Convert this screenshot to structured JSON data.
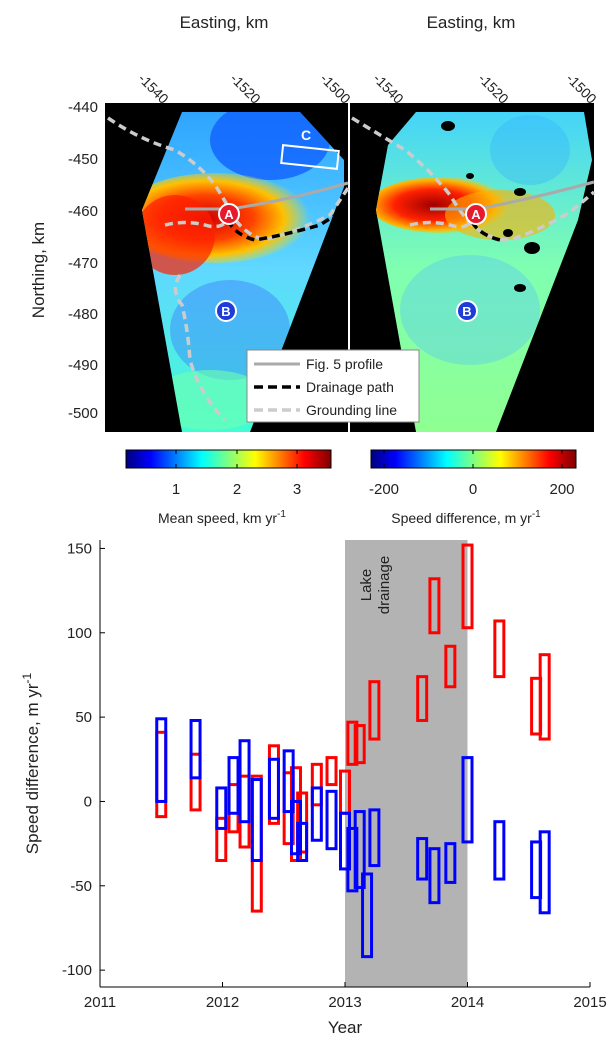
{
  "top_maps": {
    "easting_label": "Easting, km",
    "northing_label": "Northing, km",
    "easting_ticks": [
      "-1540",
      "-1520",
      "-1500"
    ],
    "northing_ticks": [
      "-440",
      "-450",
      "-460",
      "-470",
      "-480",
      "-490",
      "-500"
    ],
    "marker_a": "A",
    "marker_b": "B",
    "box_label": "C",
    "legend": [
      "Fig. 5 profile",
      "Drainage path",
      "Grounding line"
    ],
    "legend_colors": [
      "#aaaaaa",
      "#000000",
      "#cccccc"
    ],
    "colorbar_left": {
      "label": "Mean speed, km yr",
      "superscript": "-1",
      "ticks": [
        "1",
        "2",
        "3"
      ]
    },
    "colorbar_right": {
      "label": "Speed difference, m yr",
      "superscript": "-1",
      "ticks": [
        "-200",
        "0",
        "200"
      ]
    }
  },
  "chart_data": {
    "type": "bar",
    "xlabel": "Year",
    "ylabel": "Speed difference, m yr",
    "ylabel_superscript": "-1",
    "xlim": [
      2011,
      2015
    ],
    "ylim": [
      -110,
      155
    ],
    "xticks": [
      2011,
      2012,
      2013,
      2014,
      2015
    ],
    "yticks": [
      150,
      100,
      50,
      0,
      -50,
      -100
    ],
    "shaded_region": {
      "x": [
        2013.0,
        2014.0
      ],
      "label_line1": "Lake",
      "label_line2": "drainage",
      "color": "#b3b3b3"
    },
    "series": [
      {
        "color": "#ff0000",
        "ranges": [
          [
            2011.5,
            -9,
            41
          ],
          [
            2011.78,
            -5,
            28
          ],
          [
            2011.99,
            -35,
            -10
          ],
          [
            2012.09,
            -18,
            10
          ],
          [
            2012.18,
            -27,
            15
          ],
          [
            2012.28,
            -65,
            15
          ],
          [
            2012.42,
            -13,
            33
          ],
          [
            2012.54,
            -25,
            17
          ],
          [
            2012.6,
            -35,
            20
          ],
          [
            2012.65,
            -30,
            5
          ],
          [
            2012.77,
            -2,
            22
          ],
          [
            2012.89,
            10,
            26
          ],
          [
            2013.0,
            -7,
            18
          ],
          [
            2013.06,
            22,
            47
          ],
          [
            2013.12,
            23,
            45
          ],
          [
            2013.24,
            37,
            71
          ],
          [
            2013.63,
            48,
            74
          ],
          [
            2013.73,
            100,
            132
          ],
          [
            2013.86,
            68,
            92
          ],
          [
            2014.0,
            103,
            152
          ],
          [
            2014.26,
            74,
            107
          ],
          [
            2014.56,
            40,
            73
          ],
          [
            2014.63,
            37,
            87
          ]
        ]
      },
      {
        "color": "#0000ff",
        "ranges": [
          [
            2011.5,
            0,
            49
          ],
          [
            2011.78,
            14,
            48
          ],
          [
            2011.99,
            -16,
            8
          ],
          [
            2012.09,
            -7,
            26
          ],
          [
            2012.18,
            -12,
            36
          ],
          [
            2012.28,
            -35,
            13
          ],
          [
            2012.42,
            -10,
            25
          ],
          [
            2012.54,
            -6,
            30
          ],
          [
            2012.6,
            -31,
            0
          ],
          [
            2012.65,
            -35,
            -13
          ],
          [
            2012.77,
            -23,
            8
          ],
          [
            2012.89,
            -28,
            6
          ],
          [
            2013.0,
            -40,
            -7
          ],
          [
            2013.06,
            -53,
            -16
          ],
          [
            2013.12,
            -51,
            -6
          ],
          [
            2013.24,
            -38,
            -5
          ],
          [
            2013.18,
            -92,
            -43
          ],
          [
            2013.63,
            -46,
            -22
          ],
          [
            2013.73,
            -60,
            -28
          ],
          [
            2013.86,
            -48,
            -25
          ],
          [
            2014.0,
            -24,
            26
          ],
          [
            2014.26,
            -46,
            -12
          ],
          [
            2014.56,
            -57,
            -24
          ],
          [
            2014.63,
            -66,
            -18
          ]
        ]
      }
    ]
  }
}
